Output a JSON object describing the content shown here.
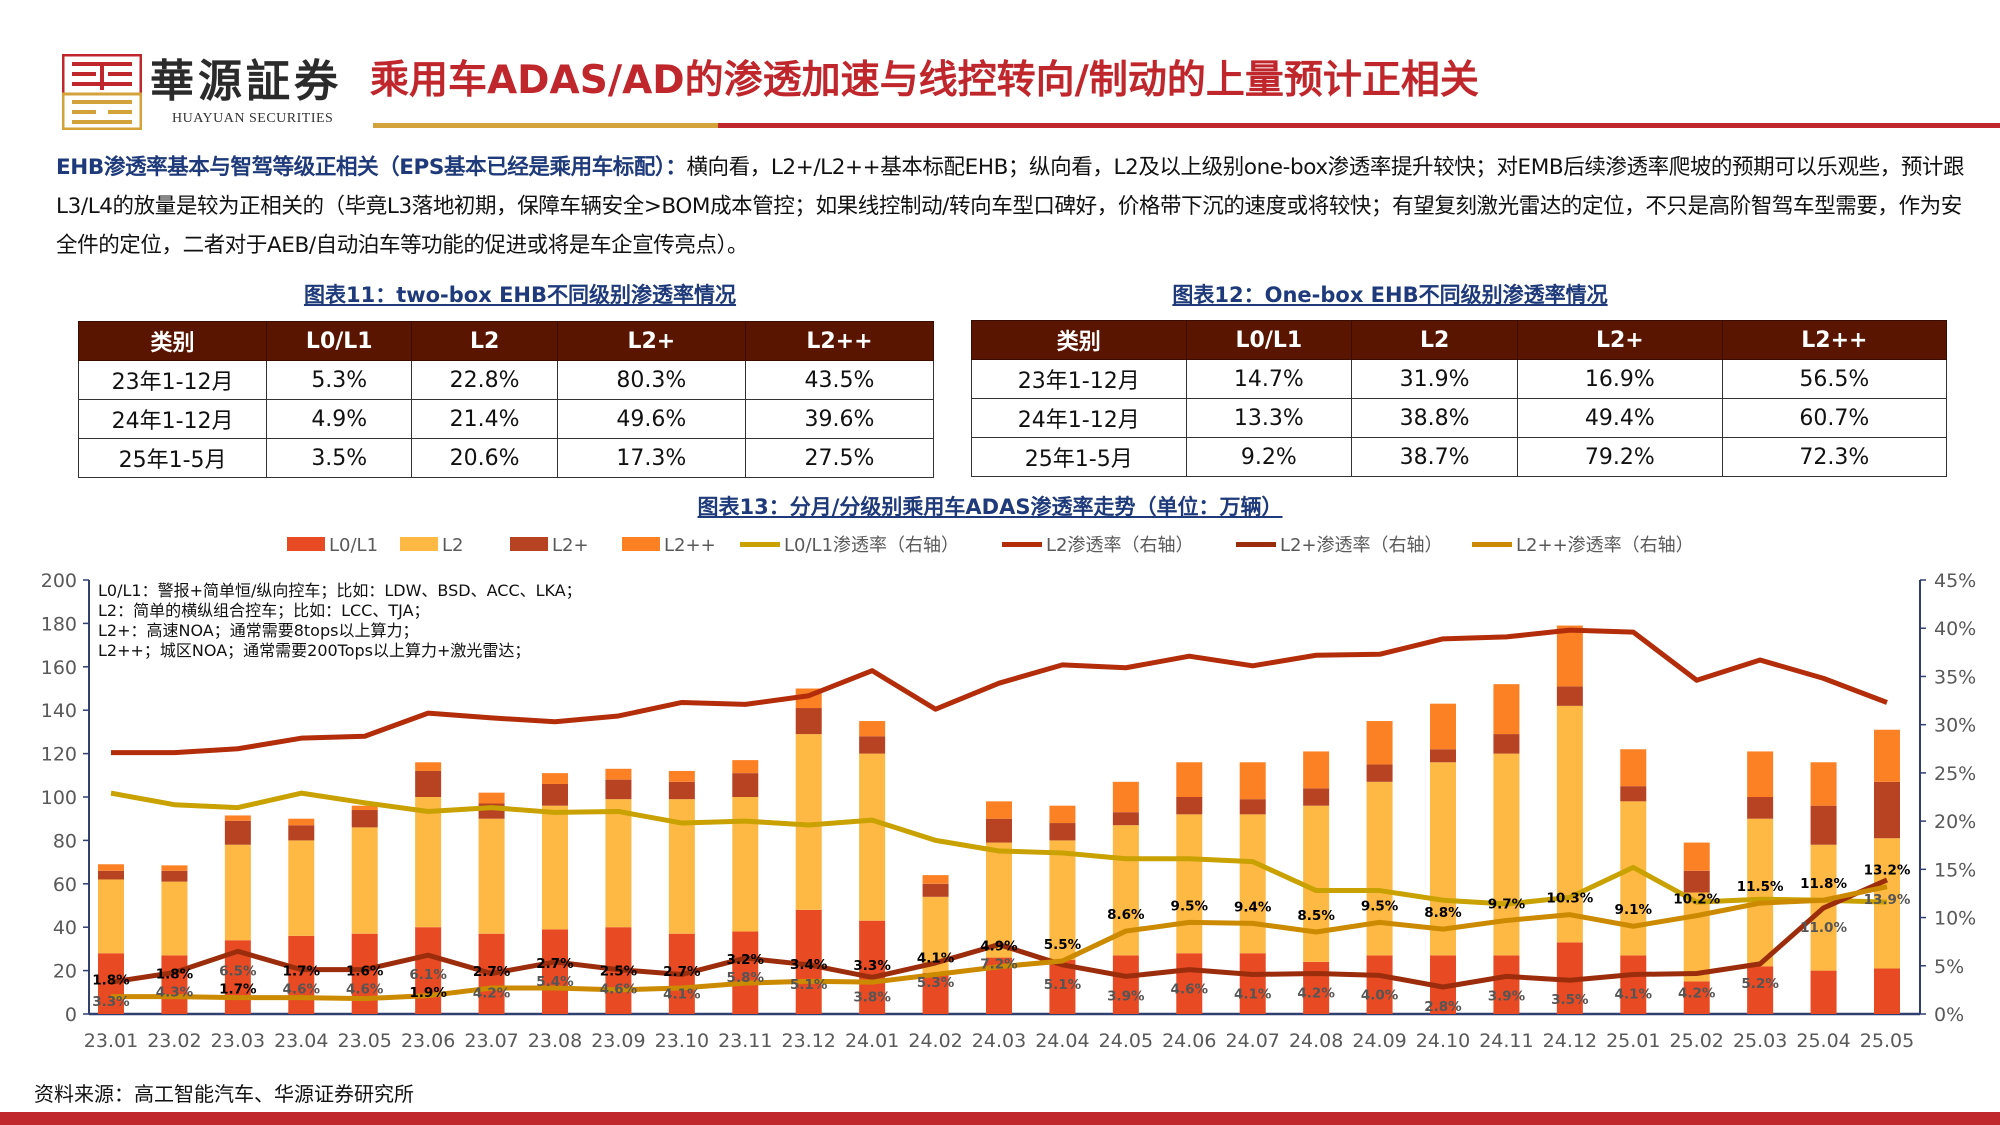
{
  "header": {
    "brand_cn": "華源証券",
    "brand_en": "HUAYUAN SECURITIES",
    "title": "乘用车ADAS/AD的渗透加速与线控转向/制动的上量预计正相关"
  },
  "intro": {
    "lead": "EHB渗透率基本与智驾等级正相关（EPS基本已经是乘用车标配）：",
    "body": "横向看，L2+/L2++基本标配EHB；纵向看，L2及以上级别one-box渗透率提升较快；对EMB后续渗透率爬坡的预期可以乐观些，预计跟L3/L4的放量是较为正相关的（毕竟L3落地初期，保障车辆安全>BOM成本管控；如果线控制动/转向车型口碑好，价格带下沉的速度或将较快；有望复刻激光雷达的定位，不只是高阶智驾车型需要，作为安全件的定位，二者对于AEB/自动泊车等功能的促进或将是车企宣传亮点）。"
  },
  "table11": {
    "title": "图表11：two-box EHB不同级别渗透率情况",
    "headers": [
      "类别",
      "L0/L1",
      "L2",
      "L2+",
      "L2++"
    ],
    "rows": [
      [
        "23年1-12月",
        "5.3%",
        "22.8%",
        "80.3%",
        "43.5%"
      ],
      [
        "24年1-12月",
        "4.9%",
        "21.4%",
        "49.6%",
        "39.6%"
      ],
      [
        "25年1-5月",
        "3.5%",
        "20.6%",
        "17.3%",
        "27.5%"
      ]
    ]
  },
  "table12": {
    "title": "图表12：One-box EHB不同级别渗透率情况",
    "headers": [
      "类别",
      "L0/L1",
      "L2",
      "L2+",
      "L2++"
    ],
    "rows": [
      [
        "23年1-12月",
        "14.7%",
        "31.9%",
        "16.9%",
        "56.5%"
      ],
      [
        "24年1-12月",
        "13.3%",
        "38.8%",
        "49.4%",
        "60.7%"
      ],
      [
        "25年1-5月",
        "9.2%",
        "38.7%",
        "79.2%",
        "72.3%"
      ]
    ]
  },
  "chart_data": {
    "type": "bar",
    "title": "图表13：分月/分级别乘用车ADAS渗透率走势（单位：万辆）",
    "stacked": true,
    "categories": [
      "23.01",
      "23.02",
      "23.03",
      "23.04",
      "23.05",
      "23.06",
      "23.07",
      "23.08",
      "23.09",
      "23.10",
      "23.11",
      "23.12",
      "24.01",
      "24.02",
      "24.03",
      "24.04",
      "24.05",
      "24.06",
      "24.07",
      "24.08",
      "24.09",
      "24.10",
      "24.11",
      "24.12",
      "25.01",
      "25.02",
      "25.03",
      "25.04",
      "25.05"
    ],
    "ylim": [
      0,
      200
    ],
    "yticks": [
      "0",
      "20",
      "40",
      "60",
      "80",
      "100",
      "120",
      "140",
      "160",
      "180",
      "200"
    ],
    "y2lim": [
      0,
      45
    ],
    "y2ticks": [
      "0%",
      "5%",
      "10%",
      "15%",
      "20%",
      "25%",
      "30%",
      "35%",
      "40%",
      "45%"
    ],
    "legend_position": "top",
    "grid": false,
    "series": [
      {
        "name": "L0/L1",
        "type": "bar",
        "color": "#E84B23",
        "values": [
          28,
          27,
          34,
          36,
          37,
          40,
          37,
          39,
          40,
          37,
          38,
          48,
          43,
          19,
          26,
          25,
          27,
          28,
          28,
          24,
          27,
          27,
          27,
          33,
          27,
          15,
          22,
          20,
          21
        ]
      },
      {
        "name": "L2",
        "type": "bar",
        "color": "#FDB944",
        "values": [
          34,
          34,
          44,
          44,
          49,
          60,
          53,
          57,
          59,
          62,
          62,
          81,
          77,
          35,
          53,
          55,
          60,
          64,
          64,
          72,
          80,
          89,
          93,
          109,
          71,
          41,
          68,
          58,
          60
        ]
      },
      {
        "name": "L2+",
        "type": "bar",
        "color": "#B84322",
        "values": [
          4,
          5,
          11,
          7,
          8,
          12,
          7,
          10,
          9,
          8,
          11,
          12,
          8,
          6,
          11,
          8,
          6,
          8,
          7,
          8,
          8,
          6,
          9,
          9,
          7,
          10,
          10,
          18,
          26
        ]
      },
      {
        "name": "L2++",
        "type": "bar",
        "color": "#FC8124",
        "values": [
          3,
          2.5,
          2.5,
          3,
          2,
          4,
          5,
          5,
          5,
          5,
          6,
          9,
          7,
          4,
          8,
          8,
          14,
          16,
          17,
          17,
          20,
          21,
          23,
          28,
          17,
          13,
          21,
          20,
          24
        ]
      },
      {
        "name": "L0/L1渗透率（右轴）",
        "type": "line",
        "axis": "right",
        "color": "#C9A100",
        "values": [
          22.9,
          21.7,
          21.4,
          22.9,
          21.9,
          21.0,
          21.4,
          20.9,
          21.0,
          19.8,
          20.0,
          19.6,
          20.1,
          18.0,
          16.9,
          16.7,
          16.1,
          16.1,
          15.8,
          12.8,
          12.8,
          11.8,
          11.4,
          12.1,
          15.2,
          11.6,
          11.9,
          11.8,
          11.6
        ]
      },
      {
        "name": "L2渗透率（右轴）",
        "type": "line",
        "axis": "right",
        "color": "#B32D0A",
        "values": [
          27.1,
          27.1,
          27.5,
          28.6,
          28.8,
          31.2,
          30.7,
          30.3,
          30.9,
          32.3,
          32.1,
          33.0,
          35.6,
          31.6,
          34.3,
          36.2,
          35.9,
          37.1,
          36.1,
          37.2,
          37.3,
          38.9,
          39.1,
          39.8,
          39.6,
          34.6,
          36.7,
          34.8,
          32.3
        ]
      },
      {
        "name": "L2+渗透率（右轴）",
        "type": "line",
        "axis": "right",
        "color": "#9C2D0C",
        "values": [
          3.3,
          4.3,
          6.5,
          4.6,
          4.6,
          6.1,
          4.2,
          5.4,
          4.6,
          4.1,
          5.8,
          5.1,
          3.8,
          5.3,
          7.2,
          5.1,
          3.9,
          4.6,
          4.1,
          4.2,
          4.0,
          2.8,
          3.9,
          3.5,
          4.1,
          4.2,
          5.2,
          11.0,
          13.9
        ],
        "labels": [
          "3.3%",
          "4.3%",
          "6.5%",
          "4.6%",
          "4.6%",
          "6.1%",
          "4.2%",
          "5.4%",
          "4.6%",
          "4.1%",
          "5.8%",
          "5.1%",
          "3.8%",
          "5.3%",
          "7.2%",
          "5.1%",
          "3.9%",
          "4.6%",
          "4.1%",
          "4.2%",
          "4.0%",
          "2.8%",
          "3.9%",
          "3.5%",
          "4.1%",
          "4.2%",
          "5.2%",
          "11.0%",
          "13.9%"
        ]
      },
      {
        "name": "L2++渗透率（右轴）",
        "type": "line",
        "axis": "right",
        "color": "#CC8A00",
        "values": [
          1.8,
          1.8,
          1.7,
          1.7,
          1.6,
          1.9,
          2.7,
          2.7,
          2.5,
          2.7,
          3.2,
          3.4,
          3.3,
          4.1,
          4.9,
          5.5,
          8.6,
          9.5,
          9.4,
          8.5,
          9.5,
          8.8,
          9.7,
          10.3,
          9.1,
          10.2,
          11.5,
          11.8,
          13.2
        ],
        "labels": [
          "1.8%",
          "1.8%",
          "1.7%",
          "1.7%",
          "1.6%",
          "1.9%",
          "2.7%",
          "2.7%",
          "2.5%",
          "2.7%",
          "3.2%",
          "3.4%",
          "3.3%",
          "4.1%",
          "4.9%",
          "5.5%",
          "8.6%",
          "9.5%",
          "9.4%",
          "8.5%",
          "9.5%",
          "8.8%",
          "9.7%",
          "10.3%",
          "9.1%",
          "10.2%",
          "11.5%",
          "11.8%",
          "13.2%"
        ]
      }
    ],
    "annotations": [
      "L0/L1：警报+简单恒/纵向控车；比如：LDW、BSD、ACC、LKA；",
      "L2：简单的横纵组合控车；比如：LCC、TJA；",
      "L2+：高速NOA；通常需要8tops以上算力；",
      "L2++；城区NOA；通常需要200Tops以上算力+激光雷达；"
    ]
  },
  "footer": {
    "source": "资料来源：高工智能汽车、华源证券研究所"
  },
  "colors": {
    "brand_red": "#C0272D",
    "brand_gold": "#D4A23A",
    "table_header": "#5A1500",
    "navy": "#1F3A7A"
  }
}
